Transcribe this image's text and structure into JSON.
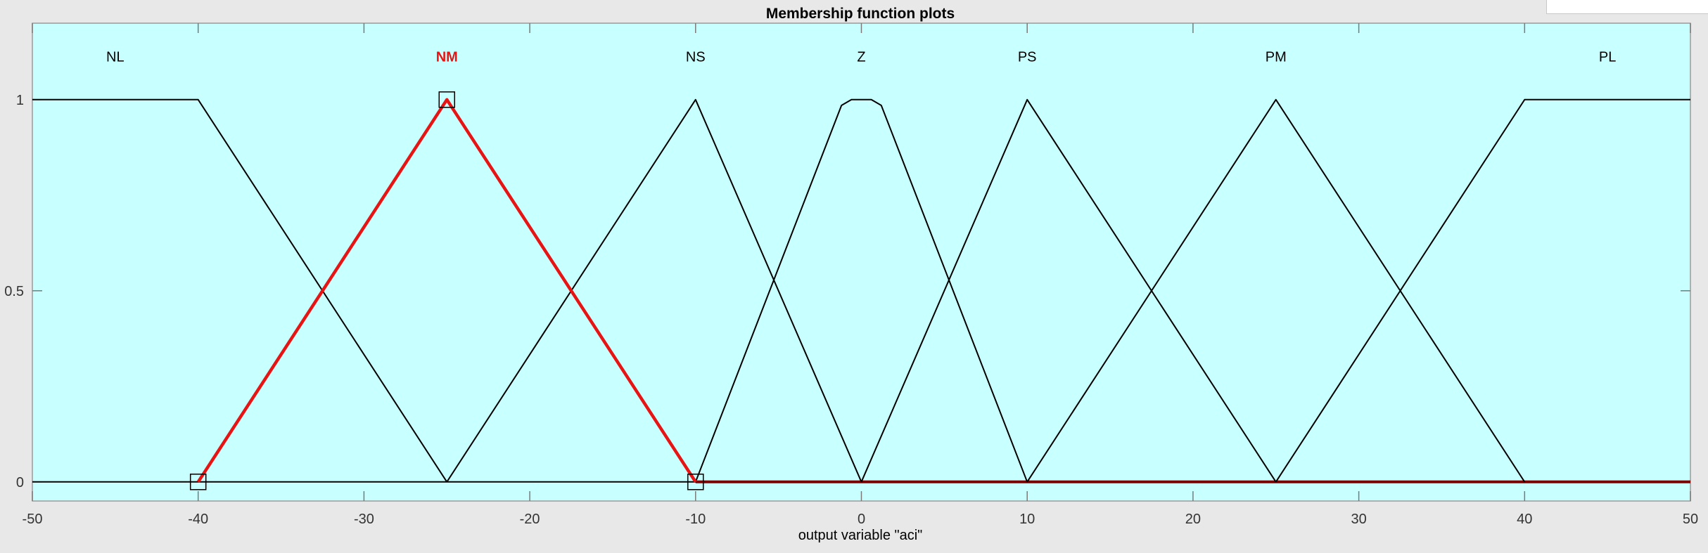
{
  "chart_data": {
    "type": "line",
    "title": "Membership function plots",
    "xlabel": "output variable \"aci\"",
    "ylabel": "",
    "xlim": [
      -50,
      50
    ],
    "ylim": [
      -0.05,
      1.2
    ],
    "x_ticks": [
      -50,
      -40,
      -30,
      -20,
      -10,
      0,
      10,
      20,
      30,
      40,
      50
    ],
    "x_tick_labels": [
      "-50",
      "-40",
      "-30",
      "-20",
      "-10",
      "0",
      "10",
      "20",
      "30",
      "40",
      "50"
    ],
    "y_ticks": [
      0,
      0.5,
      1
    ],
    "y_tick_labels": [
      "0",
      "0.5",
      "1"
    ],
    "grid": false,
    "selected_series": "NM",
    "colors": {
      "plot_background": "#c8ffff",
      "axes_border": "#9a9a9a",
      "line": "#000000",
      "selected": "#e81414",
      "baseline": "#7a0000"
    },
    "series": [
      {
        "name": "NL",
        "label_x": -45,
        "x": [
          -50,
          -40,
          -25
        ],
        "y": [
          1,
          1,
          0
        ]
      },
      {
        "name": "NM",
        "label_x": -25,
        "x": [
          -40,
          -25,
          -10
        ],
        "y": [
          0,
          1,
          0
        ]
      },
      {
        "name": "NS",
        "label_x": -10,
        "x": [
          -25,
          -10,
          0
        ],
        "y": [
          0,
          1,
          0
        ]
      },
      {
        "name": "Z",
        "label_x": 0,
        "x": [
          -10,
          -1.2,
          -0.6,
          0.6,
          1.2,
          10
        ],
        "y": [
          0,
          0.985,
          1,
          1,
          0.985,
          0
        ]
      },
      {
        "name": "PS",
        "label_x": 10,
        "x": [
          0,
          10,
          25
        ],
        "y": [
          0,
          1,
          0
        ]
      },
      {
        "name": "PM",
        "label_x": 25,
        "x": [
          10,
          25,
          40
        ],
        "y": [
          0,
          1,
          0
        ]
      },
      {
        "name": "PL",
        "label_x": 45,
        "x": [
          25,
          40,
          50
        ],
        "y": [
          0,
          1,
          1
        ]
      }
    ],
    "markers": [
      {
        "x": -40,
        "y": 0
      },
      {
        "x": -25,
        "y": 1
      },
      {
        "x": -10,
        "y": 0
      }
    ]
  }
}
